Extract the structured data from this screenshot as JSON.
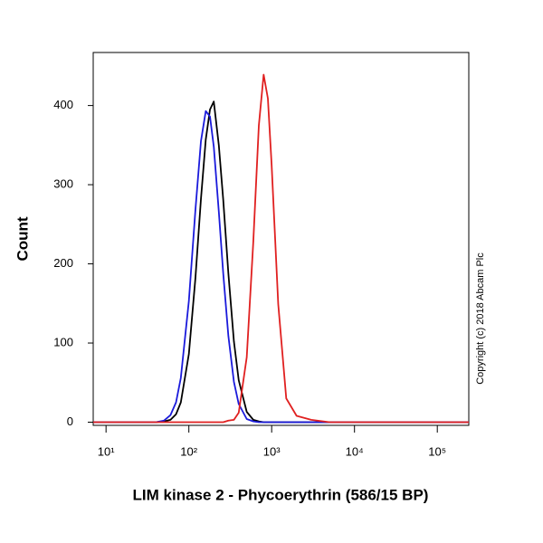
{
  "chart_data": {
    "type": "line",
    "x_label": "LIM kinase 2 - Phycoerythrin (586/15 BP)",
    "y_label": "Count",
    "annotation": "Copyright (c) 2018 Abcam Plc",
    "xscale": "log",
    "xlim": [
      7,
      240000
    ],
    "ylim": [
      -4,
      467
    ],
    "xticks": [
      {
        "value": 10,
        "label": "10¹"
      },
      {
        "value": 100,
        "label": "10²"
      },
      {
        "value": 1000,
        "label": "10³"
      },
      {
        "value": 10000,
        "label": "10⁴"
      },
      {
        "value": 100000,
        "label": "10⁵"
      }
    ],
    "yticks": [
      0,
      100,
      200,
      300,
      400
    ],
    "x": [
      7,
      40,
      50,
      60,
      70,
      80,
      100,
      120,
      140,
      160,
      180,
      200,
      230,
      260,
      300,
      350,
      400,
      500,
      600,
      700,
      800,
      900,
      1000,
      1200,
      1500,
      2000,
      3000,
      5000,
      240000
    ],
    "series": [
      {
        "color": "#000000",
        "values": [
          0,
          0,
          1,
          3,
          10,
          25,
          86,
          182,
          282,
          357,
          395,
          405,
          350,
          281,
          188,
          102,
          53,
          13,
          3,
          1,
          0,
          0,
          0,
          0,
          0,
          0,
          0,
          0,
          0
        ]
      },
      {
        "color": "#1a1adb",
        "values": [
          0,
          0,
          2,
          9,
          25,
          56,
          153,
          268,
          355,
          393,
          386,
          348,
          266,
          188,
          109,
          51,
          23,
          4,
          1,
          0,
          0,
          0,
          0,
          0,
          0,
          0,
          0,
          0,
          0
        ]
      },
      {
        "color": "#e02020",
        "values": [
          0,
          0,
          0,
          0,
          0,
          0,
          0,
          0,
          0,
          0,
          0,
          0,
          0,
          0,
          2,
          3,
          12,
          82,
          228,
          375,
          439,
          409,
          324,
          149,
          30,
          8,
          3,
          0,
          0
        ]
      }
    ]
  }
}
